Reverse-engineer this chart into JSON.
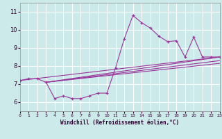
{
  "xlabel": "Windchill (Refroidissement éolien,°C)",
  "xlim": [
    0,
    23
  ],
  "ylim": [
    5.5,
    11.5
  ],
  "yticks": [
    6,
    7,
    8,
    9,
    10,
    11
  ],
  "xticks": [
    0,
    1,
    2,
    3,
    4,
    5,
    6,
    7,
    8,
    9,
    10,
    11,
    12,
    13,
    14,
    15,
    16,
    17,
    18,
    19,
    20,
    21,
    22,
    23
  ],
  "background_color": "#cceaea",
  "line_color": "#993399",
  "grid_color": "#ffffff",
  "data_line": {
    "x": [
      0,
      1,
      2,
      3,
      4,
      5,
      6,
      7,
      8,
      9,
      10,
      11,
      12,
      13,
      14,
      15,
      16,
      17,
      18,
      19,
      20,
      21,
      22,
      23
    ],
    "y": [
      7.2,
      7.3,
      7.3,
      7.1,
      6.2,
      6.35,
      6.2,
      6.2,
      6.35,
      6.5,
      6.5,
      7.9,
      9.5,
      10.8,
      10.4,
      10.1,
      9.65,
      9.35,
      9.4,
      8.5,
      9.6,
      8.5,
      8.5,
      8.5
    ]
  },
  "trend_lines": [
    {
      "x": [
        0,
        23
      ],
      "y": [
        7.2,
        8.5
      ]
    },
    {
      "x": [
        3,
        23
      ],
      "y": [
        7.1,
        8.5
      ]
    },
    {
      "x": [
        3,
        23
      ],
      "y": [
        7.1,
        8.3
      ]
    },
    {
      "x": [
        3,
        23
      ],
      "y": [
        7.1,
        8.15
      ]
    }
  ]
}
